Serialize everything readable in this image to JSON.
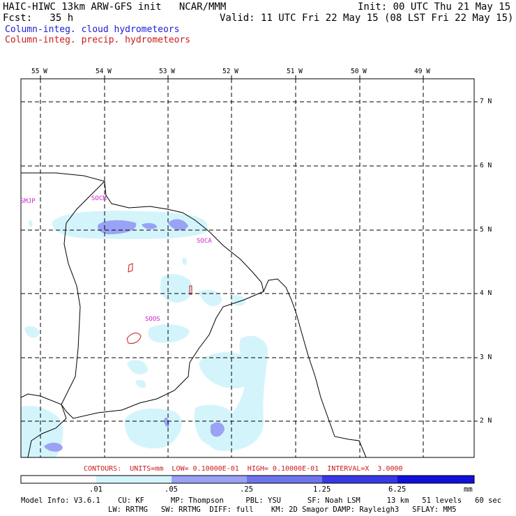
{
  "header": {
    "title": "HAIC-HIWC 13km ARW-GFS init   NCAR/MMM",
    "init": "Init: 00 UTC Thu 21 May 15",
    "fcst": "Fcst:   35 h",
    "valid": "Valid: 11 UTC Fri 22 May 15 (08 LST Fri 22 May 15)",
    "field_cloud": "Column-integ. cloud hydrometeors",
    "field_precip": "Column-integ. precip. hydrometeors"
  },
  "colors": {
    "cloud_label": "#1a1ad6",
    "precip_label": "#cc1a1a",
    "station": "#cc22cc",
    "shade_1": "#d4f4fb",
    "shade_2": "#9aa2f5",
    "shade_3": "#6e74ec",
    "shade_4": "#3838e6",
    "shade_5": "#1010dd"
  },
  "map": {
    "lon_labels": [
      "55 W",
      "54 W",
      "53 W",
      "52 W",
      "51 W",
      "50 W",
      "49 W"
    ],
    "lat_labels": [
      "7 N",
      "6 N",
      "5 N",
      "4 N",
      "3 N",
      "2 N"
    ],
    "stations": [
      "SMJP",
      "SOCM",
      "SOCA",
      "SOOS"
    ]
  },
  "contours_text": "CONTOURS:  UNITS=mm  LOW= 0.10000E-01  HIGH= 0.10000E-01  INTERVAL=X  3.0000",
  "colorbar": {
    "ticks": [
      ".01",
      ".05",
      ".25",
      "1.25",
      "6.25"
    ],
    "units": "mm"
  },
  "model_info": {
    "line1": "Model Info: V3.6.1    CU: KF      MP: Thompson     PBL: YSU      SF: Noah LSM      13 km   51 levels   60 sec",
    "line2": "LW: RRTMG   SW: RRTMG  DIFF: full    KM: 2D Smagor DAMP: Rayleigh3   SFLAY: MM5"
  }
}
